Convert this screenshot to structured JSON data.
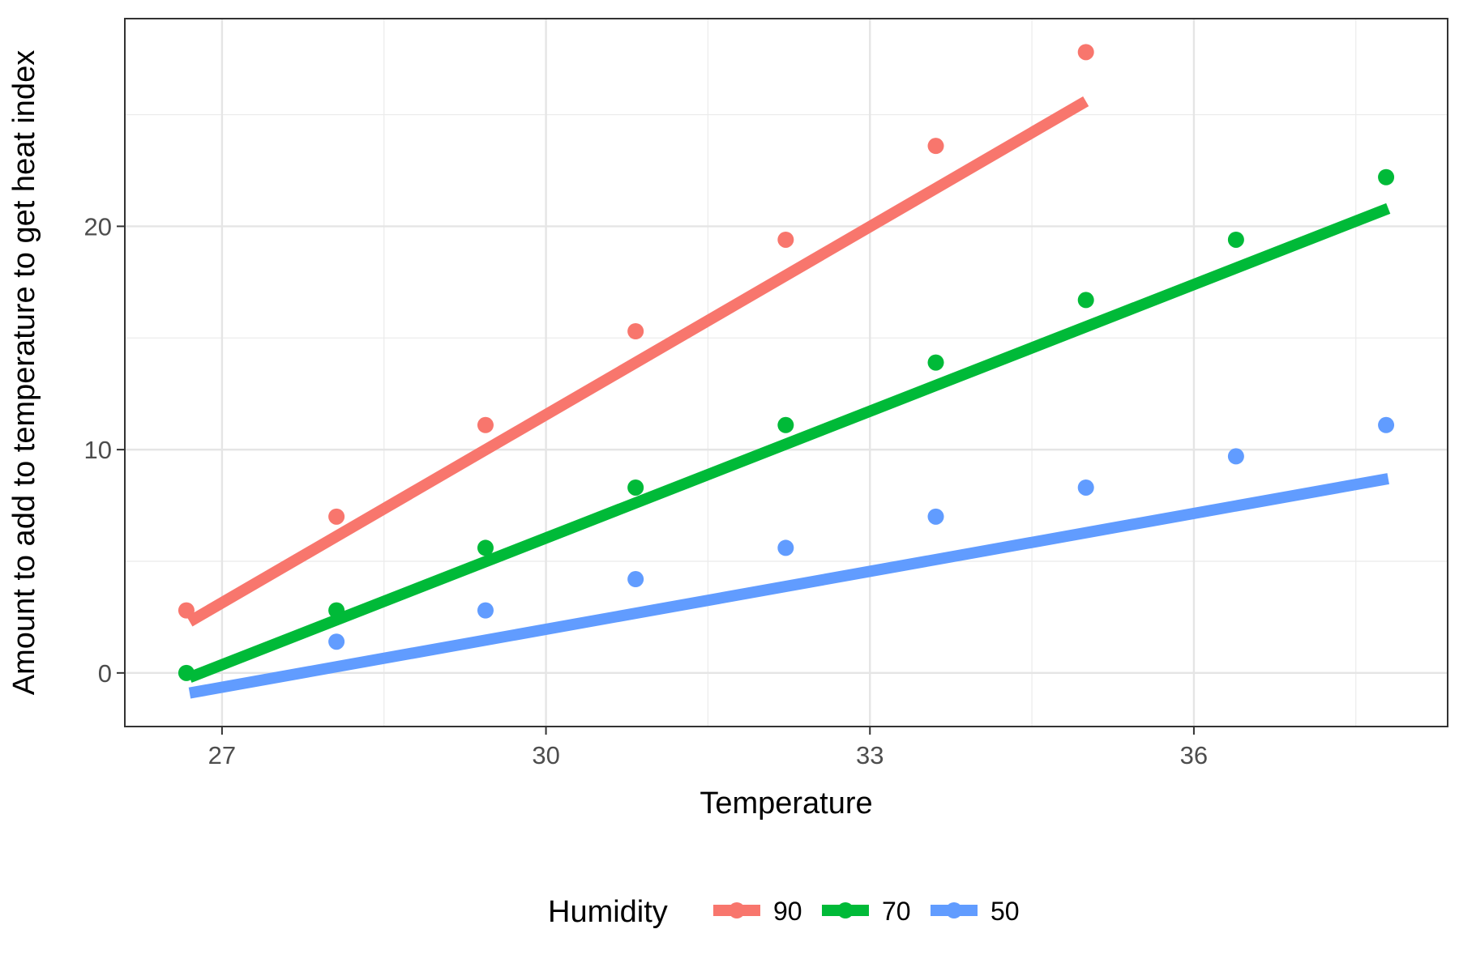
{
  "chart_data": {
    "type": "scatter",
    "title": "",
    "xlabel": "Temperature",
    "ylabel": "Amount to add to temperature to get heat index",
    "xlim": [
      26.1,
      38.35
    ],
    "ylim": [
      -2.4,
      29.3
    ],
    "x_ticks": [
      27,
      30,
      33,
      36
    ],
    "x_tick_labels": [
      "27",
      "30",
      "33",
      "36"
    ],
    "y_ticks": [
      0,
      10,
      20
    ],
    "y_tick_labels": [
      "0",
      "10",
      "20"
    ],
    "x_minor_ticks": [
      28.5,
      31.5,
      34.5,
      37.5
    ],
    "y_minor_ticks": [
      5,
      15,
      25
    ],
    "grid": true,
    "legend": {
      "title": "Humidity",
      "placement": "bottom",
      "entries": [
        "90",
        "70",
        "50"
      ]
    },
    "series": [
      {
        "name": "90",
        "color": "#F8766D",
        "x": [
          26.67,
          28.06,
          29.44,
          30.83,
          32.22,
          33.61,
          35.0
        ],
        "y": [
          2.8,
          7.0,
          11.1,
          15.3,
          19.4,
          23.6,
          27.8
        ],
        "fit_line": {
          "x": [
            26.7,
            35.0
          ],
          "y": [
            2.3,
            25.6
          ]
        }
      },
      {
        "name": "70",
        "color": "#00BA38",
        "x": [
          26.67,
          28.06,
          29.44,
          30.83,
          32.22,
          33.61,
          35.0,
          36.39,
          37.78
        ],
        "y": [
          0.0,
          2.8,
          5.6,
          8.3,
          11.1,
          13.9,
          16.7,
          19.4,
          22.2
        ],
        "fit_line": {
          "x": [
            26.7,
            37.8
          ],
          "y": [
            -0.2,
            20.8
          ]
        }
      },
      {
        "name": "50",
        "color": "#619CFF",
        "x": [
          28.06,
          29.44,
          30.83,
          32.22,
          33.61,
          35.0,
          36.39,
          37.78
        ],
        "y": [
          1.4,
          2.8,
          4.2,
          5.6,
          7.0,
          8.3,
          9.7,
          11.1
        ],
        "fit_line": {
          "x": [
            26.7,
            37.8
          ],
          "y": [
            -0.9,
            8.7
          ]
        }
      }
    ]
  }
}
